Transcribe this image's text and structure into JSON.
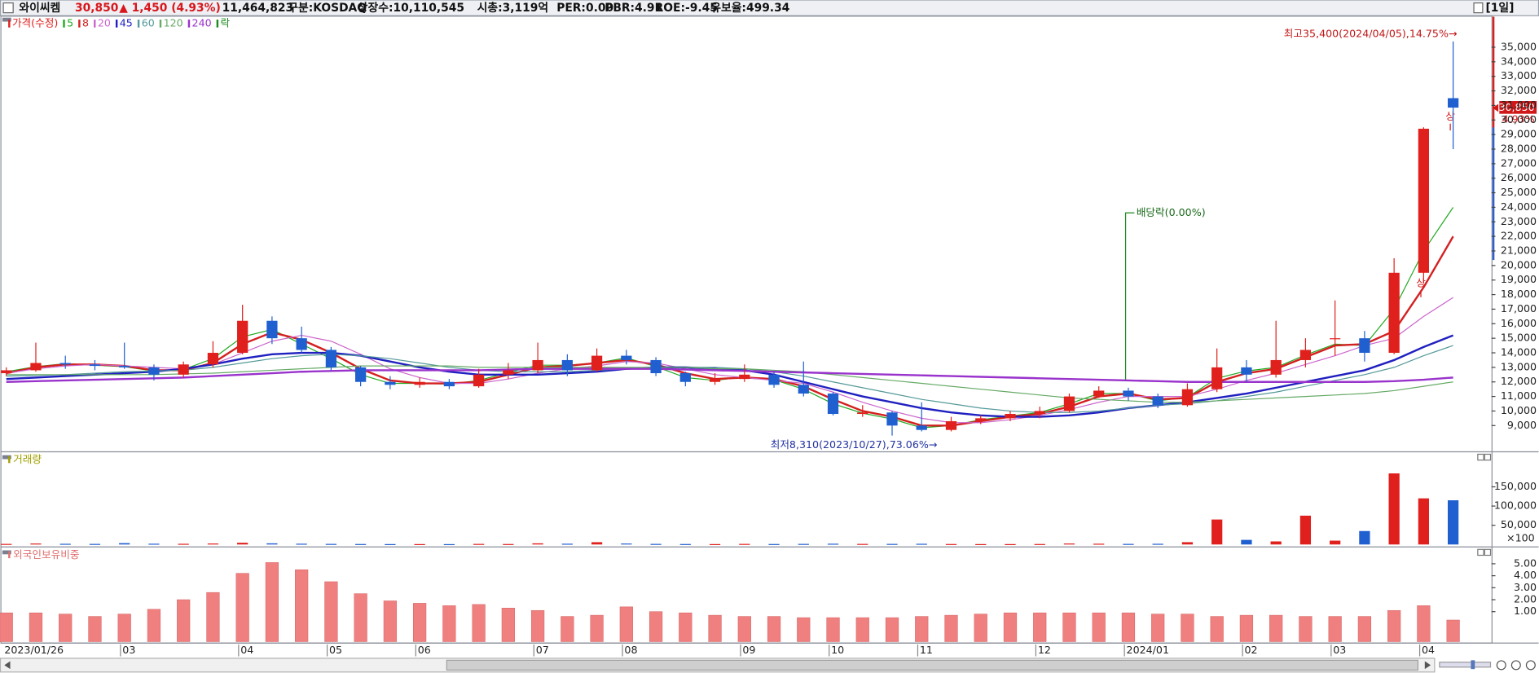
{
  "header": {
    "name": "와이씨켐",
    "price": "30,850",
    "change": "▲ 1,450 (4.93%)",
    "volume": "11,464,823",
    "market": "구분:KOSDAQ",
    "shares": "상장수:10,110,545",
    "market_cap": "시총:3,119억",
    "per": "PER:0.00",
    "pbr": "PBR:4.91",
    "roe": "ROE:-9.45",
    "reserve_ratio": "유보율:499.34",
    "period": "[1일]"
  },
  "chart_data": [
    {
      "type": "candlestick",
      "title": "가격(수정)",
      "categories": [
        "2023/01/26",
        null,
        null,
        null,
        "03",
        null,
        null,
        null,
        "04",
        null,
        null,
        "05",
        null,
        null,
        "06",
        null,
        null,
        null,
        "07",
        null,
        null,
        "08",
        null,
        null,
        null,
        "09",
        null,
        null,
        "10",
        null,
        null,
        "11",
        null,
        null,
        null,
        "12",
        null,
        null,
        "2024/01",
        null,
        null,
        null,
        "02",
        null,
        null,
        "03",
        null,
        null,
        "04",
        null
      ],
      "open": [
        12600,
        12800,
        13300,
        13200,
        13100,
        13000,
        12500,
        13200,
        14000,
        16200,
        15000,
        14200,
        13000,
        12000,
        11800,
        12000,
        11700,
        12500,
        12800,
        13500,
        12800,
        13800,
        13500,
        12600,
        12000,
        12200,
        12500,
        11800,
        11200,
        9800,
        9900,
        9000,
        8700,
        9300,
        9500,
        9800,
        10000,
        11000,
        11400,
        11000,
        10400,
        11500,
        13000,
        12500,
        13500,
        15000,
        15000,
        14000,
        19500,
        31500
      ],
      "high": [
        13000,
        14700,
        13800,
        13500,
        14700,
        13200,
        13400,
        14800,
        17300,
        16500,
        15800,
        14400,
        13100,
        12400,
        12300,
        12200,
        12900,
        13300,
        14700,
        13900,
        14300,
        14200,
        13700,
        12700,
        12600,
        13200,
        12700,
        13400,
        11300,
        10400,
        10000,
        10600,
        9600,
        9700,
        10000,
        10300,
        11200,
        11700,
        11600,
        11200,
        11900,
        14300,
        13500,
        16200,
        15000,
        17600,
        15500,
        20500,
        29500,
        35400
      ],
      "low": [
        12400,
        12700,
        12900,
        12800,
        12900,
        12100,
        12300,
        13000,
        13900,
        14600,
        14000,
        12800,
        11700,
        11500,
        11600,
        11500,
        11600,
        12200,
        12600,
        12400,
        12700,
        13200,
        12400,
        11700,
        11800,
        12000,
        11600,
        11000,
        9700,
        9600,
        8310,
        8600,
        8600,
        9100,
        9300,
        9500,
        9900,
        10900,
        10700,
        10200,
        10300,
        11300,
        12000,
        12300,
        13000,
        13800,
        13400,
        13900,
        18800,
        28000
      ],
      "close": [
        12800,
        13300,
        13200,
        13100,
        13000,
        12500,
        13200,
        14000,
        16200,
        15000,
        14200,
        13000,
        12000,
        11800,
        12000,
        11700,
        12500,
        12800,
        13500,
        12800,
        13800,
        13500,
        12600,
        12000,
        12200,
        12500,
        11800,
        11200,
        9800,
        9900,
        9000,
        8700,
        9300,
        9500,
        9800,
        10000,
        11000,
        11400,
        11000,
        10400,
        11500,
        13000,
        12500,
        13500,
        14200,
        15000,
        14000,
        19500,
        29400,
        30850
      ],
      "up_color": "#e0201c",
      "down_color": "#1f5fd0",
      "series": [
        {
          "name": "5",
          "color": "#22aa22",
          "values": [
            12700,
            13050,
            13250,
            13150,
            13050,
            12750,
            12850,
            13600,
            15100,
            15600,
            14600,
            13600,
            12500,
            11900,
            11900,
            11850,
            12100,
            12650,
            13150,
            13150,
            13300,
            13650,
            13050,
            12300,
            12100,
            12350,
            12150,
            11500,
            10500,
            9850,
            9450,
            8850,
            9000,
            9400,
            9650,
            9900,
            10500,
            11200,
            11200,
            10700,
            10950,
            12250,
            12750,
            13000,
            13850,
            14600,
            14500,
            17000,
            21000,
            24000
          ]
        },
        {
          "name": "8",
          "color": "#d42020",
          "values": [
            12600,
            13000,
            13200,
            13200,
            13100,
            12800,
            12800,
            13300,
            14600,
            15400,
            14900,
            14000,
            12900,
            12100,
            11900,
            11900,
            12000,
            12500,
            13000,
            13100,
            13300,
            13500,
            13200,
            12600,
            12200,
            12300,
            12200,
            11700,
            10800,
            10000,
            9600,
            9000,
            9000,
            9300,
            9600,
            9800,
            10300,
            11000,
            11200,
            10800,
            10900,
            12000,
            12600,
            12900,
            13700,
            14500,
            14600,
            15500,
            18500,
            22000
          ]
        },
        {
          "name": "20",
          "color": "#cc66cc",
          "values": [
            12600,
            12900,
            13100,
            13200,
            13100,
            13000,
            12900,
            13200,
            14000,
            14800,
            15200,
            14800,
            13900,
            12900,
            12300,
            11900,
            11900,
            12200,
            12600,
            12900,
            13100,
            13400,
            13300,
            12900,
            12500,
            12300,
            12100,
            11900,
            11300,
            10600,
            10000,
            9500,
            9200,
            9200,
            9400,
            9700,
            10100,
            10600,
            11000,
            11000,
            11000,
            11500,
            12100,
            12600,
            13200,
            13800,
            14500,
            15000,
            16500,
            17800
          ]
        },
        {
          "name": "45",
          "color": "#2020c0",
          "values": [
            12200,
            12300,
            12400,
            12500,
            12600,
            12700,
            12900,
            13200,
            13600,
            13900,
            14000,
            14000,
            13800,
            13400,
            13000,
            12700,
            12500,
            12500,
            12500,
            12600,
            12700,
            12900,
            13000,
            13000,
            12900,
            12800,
            12500,
            12000,
            11500,
            11000,
            10600,
            10200,
            9900,
            9700,
            9600,
            9600,
            9700,
            9900,
            10200,
            10400,
            10600,
            10900,
            11200,
            11600,
            12000,
            12400,
            12800,
            13500,
            14400,
            15200
          ]
        },
        {
          "name": "60",
          "color": "#559999",
          "values": [
            12400,
            12450,
            12500,
            12600,
            12700,
            12750,
            12800,
            13000,
            13300,
            13600,
            13800,
            13900,
            13800,
            13600,
            13300,
            13000,
            12800,
            12700,
            12700,
            12700,
            12800,
            12900,
            13000,
            13000,
            13000,
            12900,
            12700,
            12400,
            12000,
            11600,
            11200,
            10800,
            10500,
            10200,
            10000,
            9900,
            9900,
            10000,
            10200,
            10400,
            10500,
            10700,
            11000,
            11300,
            11700,
            12100,
            12500,
            13000,
            13800,
            14500
          ]
        },
        {
          "name": "120",
          "color": "#66aa66",
          "values": [
            12500,
            12500,
            12500,
            12500,
            12500,
            12500,
            12550,
            12600,
            12700,
            12800,
            12900,
            13000,
            13100,
            13100,
            13100,
            13100,
            13000,
            13000,
            13000,
            13000,
            13000,
            13000,
            13000,
            13000,
            12900,
            12900,
            12800,
            12700,
            12500,
            12300,
            12100,
            11900,
            11700,
            11500,
            11300,
            11100,
            10900,
            10800,
            10700,
            10600,
            10600,
            10700,
            10800,
            10900,
            11000,
            11100,
            11200,
            11400,
            11700,
            12000
          ]
        },
        {
          "name": "240",
          "color": "#9933cc",
          "values": [
            12000,
            12050,
            12100,
            12150,
            12200,
            12250,
            12300,
            12400,
            12500,
            12600,
            12700,
            12750,
            12800,
            12800,
            12800,
            12800,
            12800,
            12850,
            12900,
            12900,
            12900,
            12900,
            12900,
            12850,
            12800,
            12750,
            12700,
            12650,
            12600,
            12550,
            12500,
            12450,
            12400,
            12350,
            12300,
            12250,
            12200,
            12150,
            12100,
            12050,
            12000,
            12000,
            12000,
            12000,
            12000,
            12000,
            12000,
            12050,
            12150,
            12300
          ]
        }
      ],
      "ex_dividend": {
        "name": "락",
        "color": "#1a8a1a"
      },
      "ylim": [
        7300,
        37100
      ],
      "yticks": [
        {
          "value": 9000,
          "label": "9,000"
        },
        {
          "value": 10000,
          "label": "10,000"
        },
        {
          "value": 11000,
          "label": "11,000"
        },
        {
          "value": 12000,
          "label": "12,000"
        },
        {
          "value": 13000,
          "label": "13,000"
        },
        {
          "value": 14000,
          "label": "14,000"
        },
        {
          "value": 15000,
          "label": "15,000"
        },
        {
          "value": 16000,
          "label": "16,000"
        },
        {
          "value": 17000,
          "label": "17,000"
        },
        {
          "value": 18000,
          "label": "18,000"
        },
        {
          "value": 19000,
          "label": "19,000"
        },
        {
          "value": 20000,
          "label": "20,000"
        },
        {
          "value": 21000,
          "label": "21,000"
        },
        {
          "value": 22000,
          "label": "22,000"
        },
        {
          "value": 23000,
          "label": "23,000"
        },
        {
          "value": 24000,
          "label": "24,000"
        },
        {
          "value": 25000,
          "label": "25,000"
        },
        {
          "value": 26000,
          "label": "26,000"
        },
        {
          "value": 27000,
          "label": "27,000"
        },
        {
          "value": 28000,
          "label": "28,000"
        },
        {
          "value": 29000,
          "label": "29,000"
        },
        {
          "value": 30000,
          "label": "30,000"
        },
        {
          "value": 31000,
          "label": "31,000"
        },
        {
          "value": 32000,
          "label": "32,000"
        },
        {
          "value": 33000,
          "label": "33,000"
        },
        {
          "value": 34000,
          "label": "34,000"
        },
        {
          "value": 35000,
          "label": "35,000"
        }
      ],
      "annotations": {
        "high": "최고35,400(2024/04/05),14.75%→",
        "low": "최저8,310(2023/10/27),73.06%→",
        "ex_dividend": "배당락(0.00%)",
        "limit_up": [
          "상",
          "상"
        ],
        "price_tag": "30,850",
        "change_tag": "4.93%"
      }
    },
    {
      "type": "bar",
      "title": "거래량",
      "values": [
        1500,
        2500,
        1800,
        1500,
        3500,
        2000,
        1800,
        2500,
        4500,
        3000,
        2000,
        1500,
        1200,
        1000,
        1000,
        900,
        1500,
        1200,
        3000,
        2000,
        6000,
        2500,
        1500,
        1200,
        1000,
        1500,
        1200,
        1500,
        2000,
        1500,
        1500,
        1800,
        1200,
        1000,
        1000,
        1200,
        2500,
        2000,
        1500,
        1800,
        6000,
        65000,
        12000,
        8000,
        75000,
        10000,
        35000,
        185000,
        120000,
        115000
      ],
      "unit_label": "×100",
      "ylim": [
        0,
        217000
      ],
      "yticks": [
        {
          "value": 50000,
          "label": "50,000"
        },
        {
          "value": 100000,
          "label": "100,000"
        },
        {
          "value": 150000,
          "label": "150,000"
        }
      ]
    },
    {
      "type": "bar",
      "title": "외국인보유비중",
      "values": [
        0.9,
        0.9,
        0.8,
        0.6,
        0.8,
        1.2,
        2.0,
        2.6,
        4.2,
        5.1,
        4.5,
        3.5,
        2.5,
        1.9,
        1.7,
        1.5,
        1.6,
        1.3,
        1.1,
        0.6,
        0.7,
        1.4,
        1.0,
        0.9,
        0.7,
        0.6,
        0.6,
        0.5,
        0.5,
        0.5,
        0.5,
        0.6,
        0.7,
        0.8,
        0.9,
        0.9,
        0.9,
        0.9,
        0.9,
        0.8,
        0.8,
        0.6,
        0.7,
        0.7,
        0.6,
        0.6,
        0.6,
        1.1,
        1.5,
        0.3
      ],
      "color": "#f08080",
      "ylim": [
        -1.5,
        6.2
      ],
      "yticks": [
        {
          "value": 1,
          "label": "1.00"
        },
        {
          "value": 2,
          "label": "2.00"
        },
        {
          "value": 3,
          "label": "3.00"
        },
        {
          "value": 4,
          "label": "4.00"
        },
        {
          "value": 5,
          "label": "5.00"
        }
      ]
    }
  ]
}
